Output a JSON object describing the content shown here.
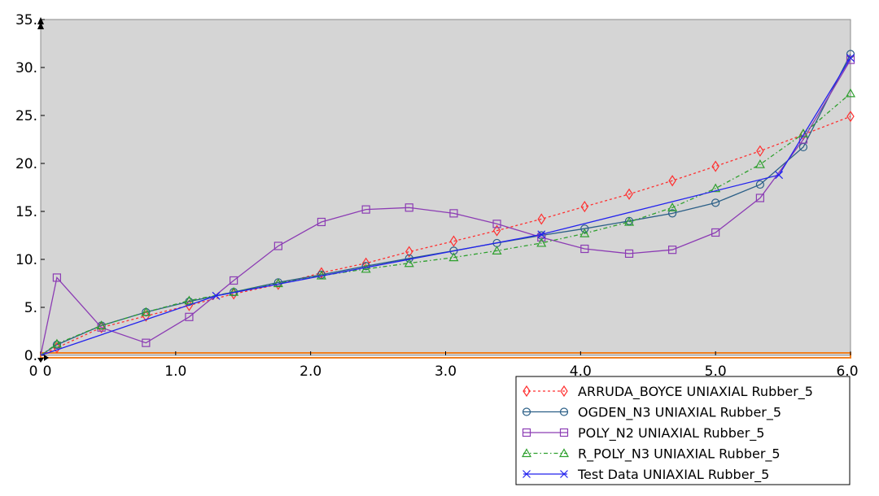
{
  "chart_data": {
    "type": "line",
    "title": "",
    "xlabel": "",
    "ylabel": "",
    "xlim": [
      0,
      6.0
    ],
    "ylim": [
      0,
      35
    ],
    "grid": false,
    "legend_position": "bottom-right",
    "x_tick_labels": [
      "0",
      "0",
      "1.0",
      "2.0",
      "3.0",
      "4.0",
      "5.0",
      "6.0"
    ],
    "y_tick_labels": [
      "0.",
      "5.",
      "10.",
      "15.",
      "20.",
      "25.",
      "30.",
      "35."
    ],
    "series": [
      {
        "name": "ARRUDA_BOYCE UNIAXIAL Rubber_5",
        "color": "#ff3030",
        "dash": "dotted",
        "marker": "diamond",
        "x": [
          0,
          0.12,
          0.45,
          0.78,
          1.1,
          1.43,
          1.76,
          2.08,
          2.41,
          2.73,
          3.06,
          3.38,
          3.71,
          4.03,
          4.36,
          4.68,
          5.0,
          5.33,
          5.65,
          6.0
        ],
        "y": [
          0,
          0.8,
          2.9,
          4.1,
          5.2,
          6.4,
          7.4,
          8.6,
          9.6,
          10.8,
          11.9,
          13.0,
          14.2,
          15.5,
          16.8,
          18.2,
          19.7,
          21.3,
          23.0,
          24.9
        ]
      },
      {
        "name": "OGDEN_N3 UNIAXIAL Rubber_5",
        "color": "#2b5f87",
        "dash": "solid",
        "marker": "circle",
        "x": [
          0,
          0.12,
          0.45,
          0.78,
          1.1,
          1.43,
          1.76,
          2.08,
          2.41,
          2.73,
          3.06,
          3.38,
          3.71,
          4.03,
          4.36,
          4.68,
          5.0,
          5.33,
          5.65,
          6.0
        ],
        "y": [
          0,
          1.1,
          3.1,
          4.5,
          5.6,
          6.6,
          7.6,
          8.4,
          9.3,
          10.1,
          10.9,
          11.7,
          12.5,
          13.2,
          14.0,
          14.8,
          15.9,
          17.8,
          21.7,
          31.4
        ]
      },
      {
        "name": "POLY_N2 UNIAXIAL Rubber_5",
        "color": "#8c3cb4",
        "dash": "solid",
        "marker": "square",
        "x": [
          0,
          0.12,
          0.45,
          0.78,
          1.1,
          1.43,
          1.76,
          2.08,
          2.41,
          2.73,
          3.06,
          3.38,
          3.71,
          4.03,
          4.36,
          4.68,
          5.0,
          5.33,
          5.65,
          6.0
        ],
        "y": [
          0,
          8.1,
          2.9,
          1.3,
          4.0,
          7.8,
          11.4,
          13.9,
          15.2,
          15.4,
          14.8,
          13.7,
          12.3,
          11.1,
          10.6,
          11.0,
          12.8,
          16.4,
          22.5,
          30.8
        ]
      },
      {
        "name": "R_POLY_N3 UNIAXIAL Rubber_5",
        "color": "#2ea02e",
        "dash": "dashdot",
        "marker": "triangle",
        "x": [
          0,
          0.12,
          0.45,
          0.78,
          1.1,
          1.43,
          1.76,
          2.08,
          2.41,
          2.73,
          3.06,
          3.38,
          3.71,
          4.03,
          4.36,
          4.68,
          5.0,
          5.33,
          5.65,
          6.0
        ],
        "y": [
          0,
          1.2,
          3.1,
          4.5,
          5.7,
          6.6,
          7.5,
          8.3,
          9.0,
          9.6,
          10.2,
          10.9,
          11.7,
          12.7,
          13.9,
          15.4,
          17.4,
          19.9,
          23.1,
          27.3
        ]
      },
      {
        "name": "Test Data UNIAXIAL Rubber_5",
        "color": "#2222ee",
        "dash": "solid",
        "marker": "x",
        "x": [
          0,
          1.3,
          3.71,
          5.47,
          6.0
        ],
        "y": [
          0,
          6.2,
          12.6,
          18.8,
          31.0
        ]
      }
    ]
  }
}
